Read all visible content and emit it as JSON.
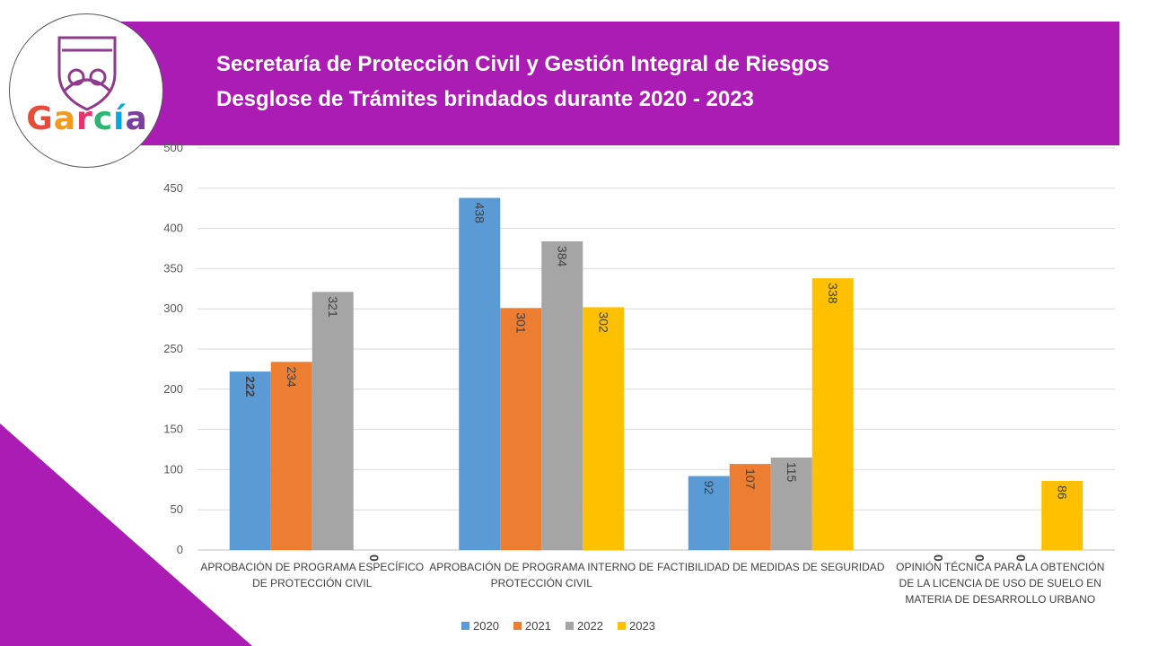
{
  "header": {
    "title_line1": "Secretaría de Protección Civil y Gestión Integral de Riesgos",
    "title_line2": "Desglose de Trámites brindados durante 2020 - 2023"
  },
  "logo": {
    "wordmark": [
      "G",
      "a",
      "r",
      "c",
      "í",
      "a"
    ],
    "wordmark_colors": [
      "#e84a3c",
      "#f39a1e",
      "#e6336e",
      "#2bb673",
      "#00a7e1",
      "#7b3f9e"
    ],
    "crest_color": "#8e3b8c"
  },
  "colors": {
    "accent": "#ab1cb5"
  },
  "chart_data": {
    "type": "bar",
    "categories": [
      [
        "APROBACIÓN DE PROGRAMA ESPECÍFICO",
        "DE PROTECCIÓN CIVIL"
      ],
      [
        "APROBACIÓN DE PROGRAMA INTERNO DE",
        "PROTECCIÓN CIVIL"
      ],
      [
        "FACTIBILIDAD DE MEDIDAS DE SEGURIDAD"
      ],
      [
        "OPINIÓN TÉCNICA PARA LA OBTENCIÓN",
        "DE LA LICENCIA DE USO DE SUELO EN",
        "MATERIA DE DESARROLLO URBANO"
      ]
    ],
    "series": [
      {
        "name": "2020",
        "color": "#5b9bd5",
        "values": [
          222,
          438,
          92,
          0
        ]
      },
      {
        "name": "2021",
        "color": "#ed7d31",
        "values": [
          234,
          301,
          107,
          0
        ]
      },
      {
        "name": "2022",
        "color": "#a5a5a5",
        "values": [
          321,
          384,
          115,
          0
        ]
      },
      {
        "name": "2023",
        "color": "#ffc000",
        "values": [
          0,
          302,
          338,
          86
        ]
      }
    ],
    "yticks": [
      0,
      50,
      100,
      150,
      200,
      250,
      300,
      350,
      400,
      450,
      500
    ],
    "ylim": [
      0,
      500
    ],
    "grid": true,
    "legend_position": "bottom",
    "data_labels": "rotated"
  }
}
